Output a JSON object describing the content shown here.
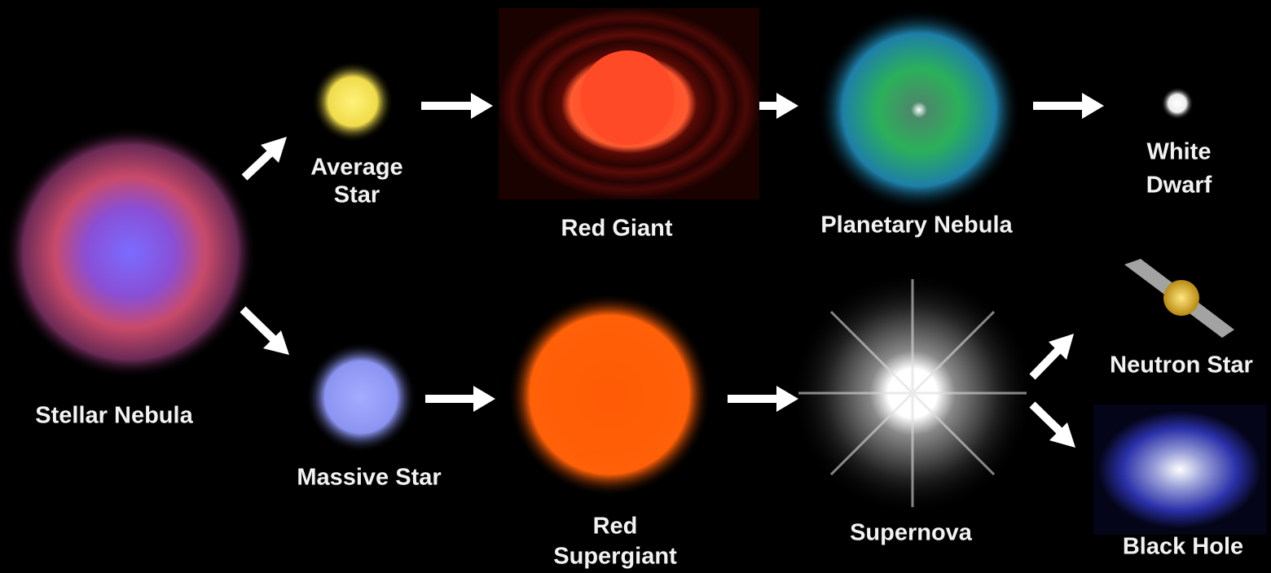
{
  "nodes": [
    {
      "label": [
        "Stellar Nebula"
      ]
    },
    {
      "label": [
        "Average",
        "Star"
      ]
    },
    {
      "label": [
        "Red Giant"
      ]
    },
    {
      "label": [
        "Planetary Nebula"
      ]
    },
    {
      "label": [
        "White",
        "Dwarf"
      ]
    },
    {
      "label": [
        "Massive Star"
      ]
    },
    {
      "label": [
        "Red",
        "Supergiant"
      ]
    },
    {
      "label": [
        "Supernova"
      ]
    },
    {
      "label": [
        "Neutron Star"
      ]
    },
    {
      "label": [
        "Black Hole"
      ]
    }
  ]
}
